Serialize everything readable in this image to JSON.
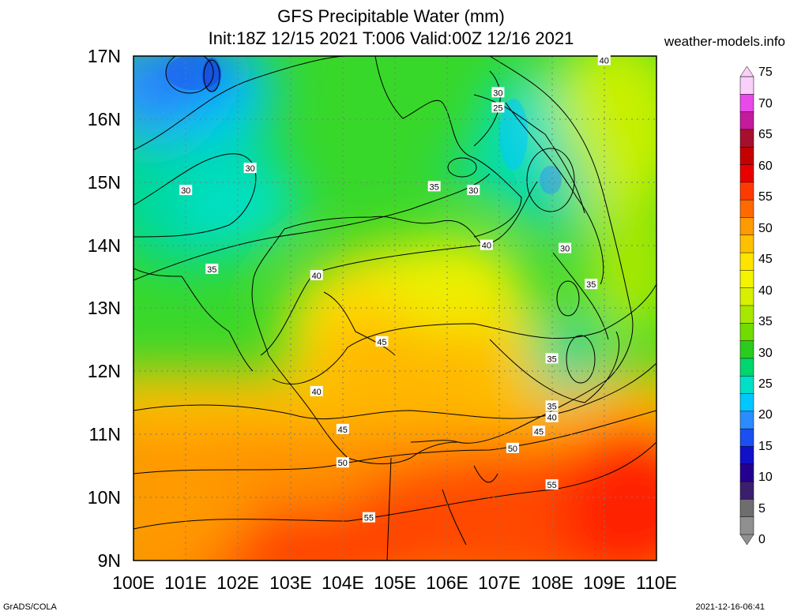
{
  "header": {
    "title_line1": "GFS Precipitable Water (mm)",
    "title_line2": "Init:18Z 12/15 2021 T:006 Valid:00Z 12/16 2021",
    "site": "weather-models.info"
  },
  "footer": {
    "left": "GrADS/COLA",
    "right": "2021-12-16-06:41"
  },
  "axes": {
    "lat_labels": [
      "17N",
      "16N",
      "15N",
      "14N",
      "13N",
      "12N",
      "11N",
      "10N",
      "9N"
    ],
    "lon_labels": [
      "100E",
      "101E",
      "102E",
      "103E",
      "104E",
      "105E",
      "106E",
      "107E",
      "108E",
      "109E",
      "110E"
    ]
  },
  "contour_labels": [
    {
      "text": "40",
      "lon": 109.0,
      "lat": 16.93
    },
    {
      "text": "30",
      "lon": 106.97,
      "lat": 16.42
    },
    {
      "text": "25",
      "lon": 106.97,
      "lat": 16.18
    },
    {
      "text": "30",
      "lon": 102.23,
      "lat": 15.22
    },
    {
      "text": "30",
      "lon": 101.0,
      "lat": 14.87
    },
    {
      "text": "35",
      "lon": 105.75,
      "lat": 14.93
    },
    {
      "text": "30",
      "lon": 106.5,
      "lat": 14.87
    },
    {
      "text": "40",
      "lon": 106.75,
      "lat": 14.0
    },
    {
      "text": "30",
      "lon": 108.25,
      "lat": 13.95
    },
    {
      "text": "35",
      "lon": 101.5,
      "lat": 13.62
    },
    {
      "text": "40",
      "lon": 103.5,
      "lat": 13.52
    },
    {
      "text": "35",
      "lon": 108.75,
      "lat": 13.38
    },
    {
      "text": "45",
      "lon": 104.75,
      "lat": 12.47
    },
    {
      "text": "35",
      "lon": 108.0,
      "lat": 12.2
    },
    {
      "text": "40",
      "lon": 103.5,
      "lat": 11.68
    },
    {
      "text": "35",
      "lon": 108.0,
      "lat": 11.45
    },
    {
      "text": "40",
      "lon": 108.0,
      "lat": 11.27
    },
    {
      "text": "45",
      "lon": 104.0,
      "lat": 11.08
    },
    {
      "text": "45",
      "lon": 107.75,
      "lat": 11.05
    },
    {
      "text": "50",
      "lon": 107.25,
      "lat": 10.78
    },
    {
      "text": "50",
      "lon": 104.0,
      "lat": 10.55
    },
    {
      "text": "55",
      "lon": 108.0,
      "lat": 10.2
    },
    {
      "text": "55",
      "lon": 104.5,
      "lat": 9.68
    }
  ],
  "colorbar": {
    "labels": [
      "75",
      "70",
      "65",
      "60",
      "55",
      "50",
      "45",
      "40",
      "35",
      "30",
      "25",
      "20",
      "15",
      "10",
      "5",
      "0"
    ],
    "colors": [
      "#f9d0f9",
      "#e84ae8",
      "#c41a9c",
      "#a5102d",
      "#c40000",
      "#e80000",
      "#ff3a00",
      "#ff6a00",
      "#ff9a00",
      "#ffc000",
      "#ffe400",
      "#f4f400",
      "#d8f000",
      "#a8e800",
      "#70dc00",
      "#2ccc1e",
      "#00d66e",
      "#00e0c8",
      "#00c8ff",
      "#2a8cff",
      "#1a50f0",
      "#1010c8",
      "#240090",
      "#3c1e6e",
      "#6e6e6e",
      "#909090"
    ]
  }
}
